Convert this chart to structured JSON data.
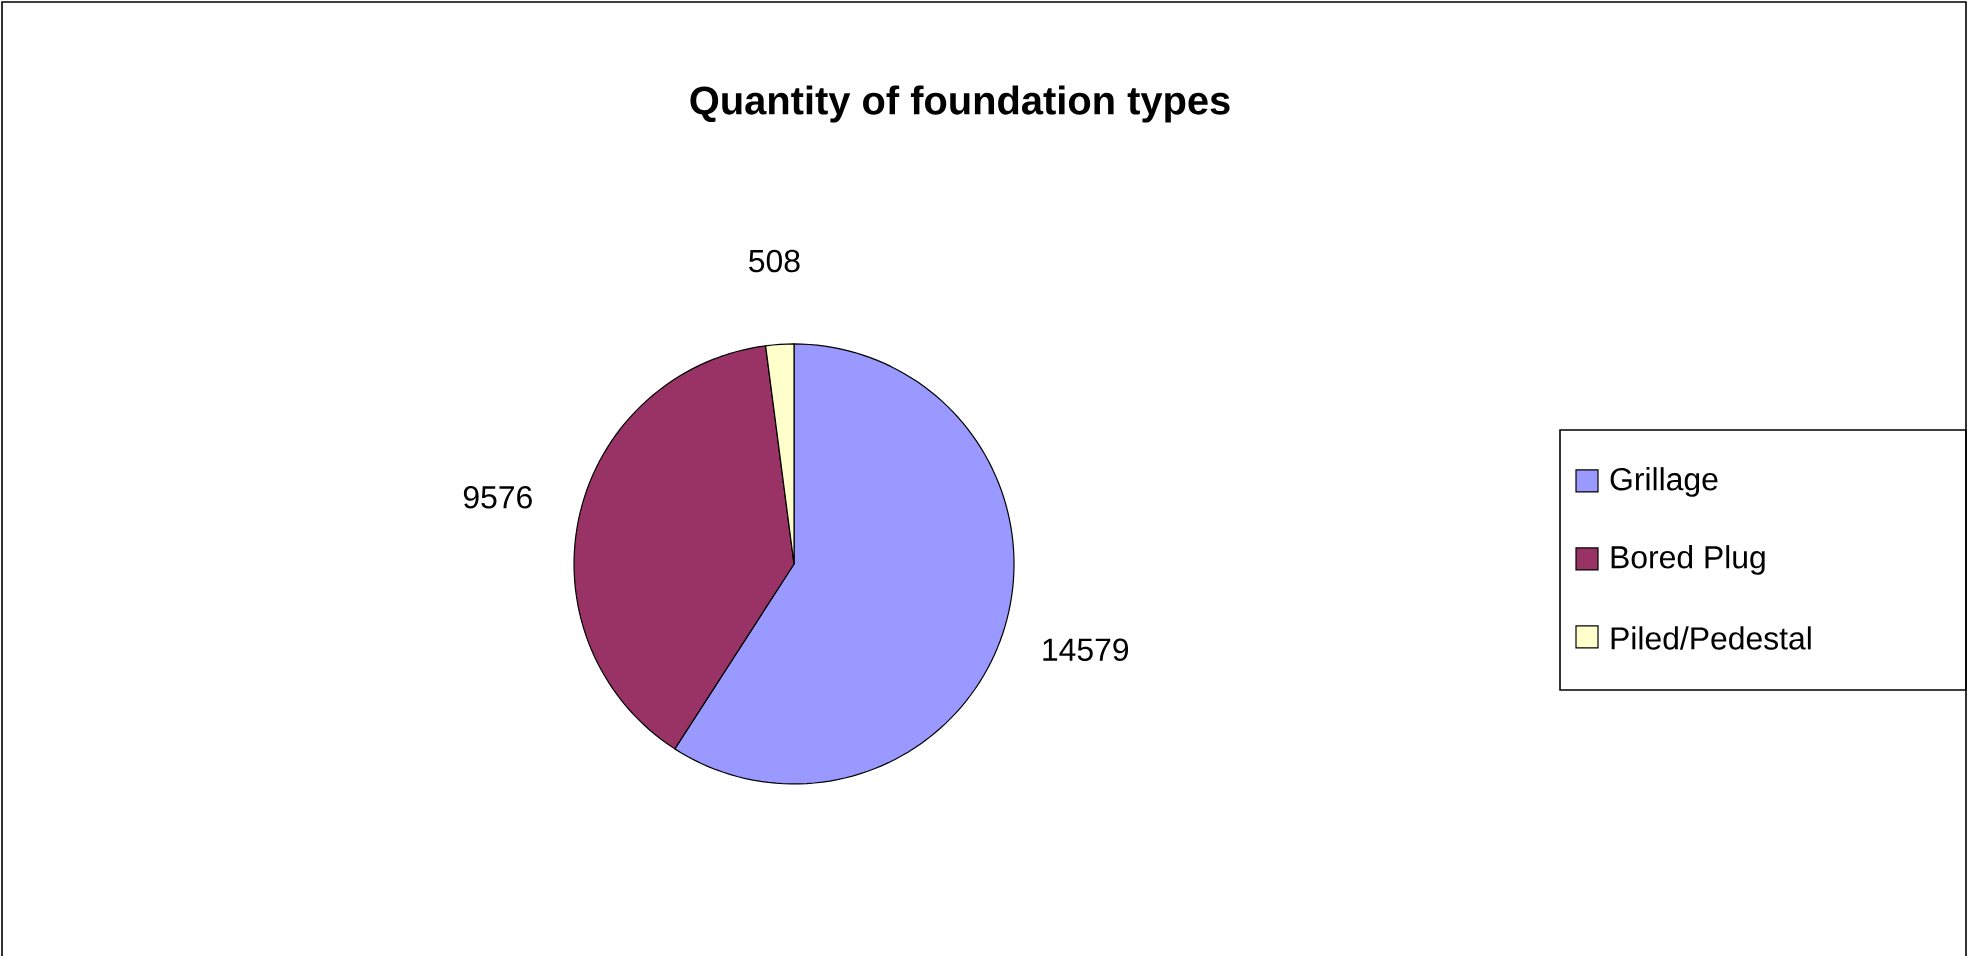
{
  "chart_data": {
    "type": "pie",
    "title": "Quantity of foundation types",
    "categories": [
      "Grillage",
      "Bored Plug",
      "Piled/Pedestal"
    ],
    "values": [
      14579,
      9576,
      508
    ],
    "colors": [
      "#9999ff",
      "#993366",
      "#ffffcc"
    ],
    "data_labels": true,
    "legend": "right"
  }
}
